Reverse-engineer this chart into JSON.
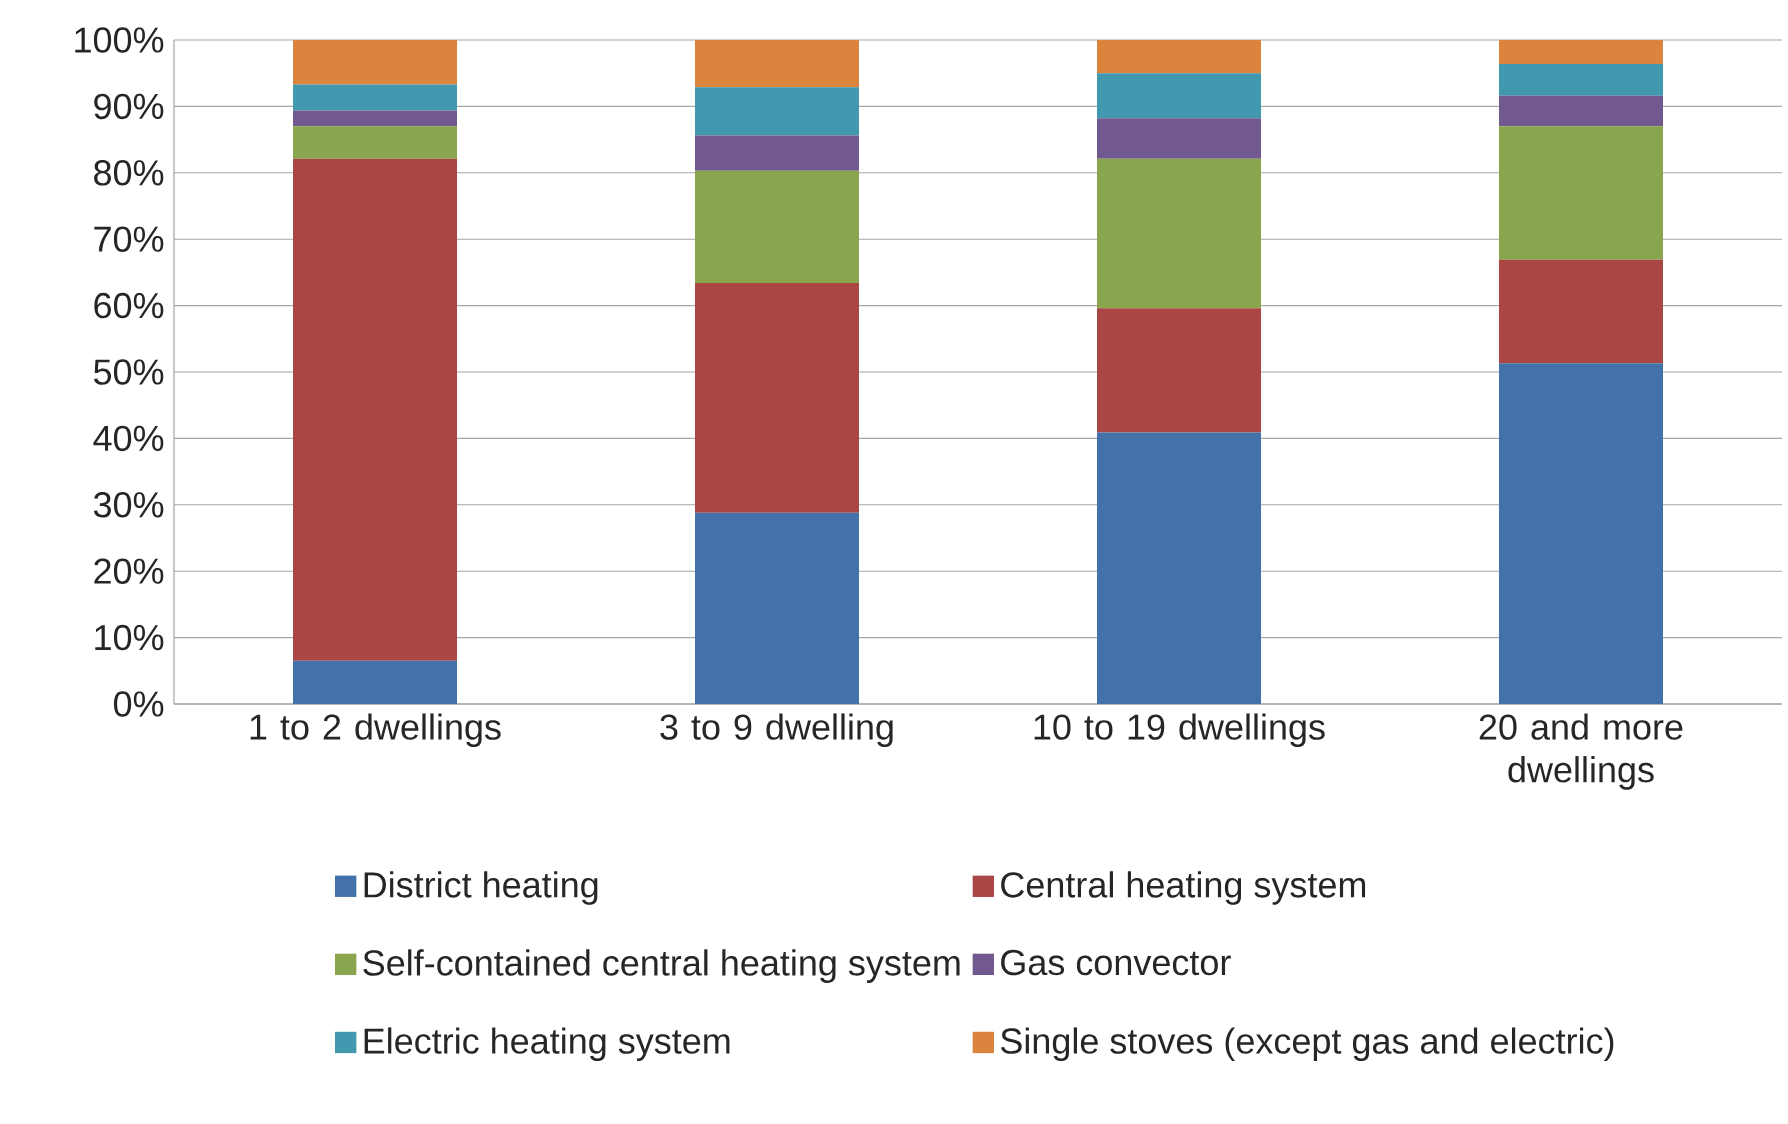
{
  "chart_data": {
    "type": "bar",
    "stacked": true,
    "categories": [
      "1 to 2 dwellings",
      "3 to  9 dwelling",
      "10 to  19 dwellings",
      "20 and more dwellings"
    ],
    "series": [
      {
        "name": "District heating",
        "color": "#4472a8",
        "values": [
          6.5,
          28.8,
          40.9,
          51.3
        ]
      },
      {
        "name": "Central heating system",
        "color": "#aa4644",
        "values": [
          75.6,
          34.6,
          18.7,
          15.6
        ]
      },
      {
        "name": "Self-contained central heating system",
        "color": "#89a54e",
        "values": [
          4.9,
          16.9,
          22.5,
          20.1
        ]
      },
      {
        "name": "Gas convector",
        "color": "#71588f",
        "values": [
          2.4,
          5.3,
          6.1,
          4.6
        ]
      },
      {
        "name": "Electric heating system",
        "color": "#4298af",
        "values": [
          3.9,
          7.3,
          6.8,
          4.8
        ]
      },
      {
        "name": "Single stoves (except gas and electric)",
        "color": "#db843d",
        "values": [
          6.7,
          7.1,
          5.0,
          3.6
        ]
      }
    ],
    "ylim": [
      0,
      100
    ],
    "yticks": [
      {
        "value": 0,
        "label": "0%"
      },
      {
        "value": 10,
        "label": "10%"
      },
      {
        "value": 20,
        "label": "20%"
      },
      {
        "value": 30,
        "label": "30%"
      },
      {
        "value": 40,
        "label": "40%"
      },
      {
        "value": 50,
        "label": "50%"
      },
      {
        "value": 60,
        "label": "60%"
      },
      {
        "value": 70,
        "label": "70%"
      },
      {
        "value": 80,
        "label": "80%"
      },
      {
        "value": 90,
        "label": "90%"
      },
      {
        "value": 100,
        "label": "100%"
      }
    ],
    "grid": "y",
    "legend": "bottom"
  }
}
